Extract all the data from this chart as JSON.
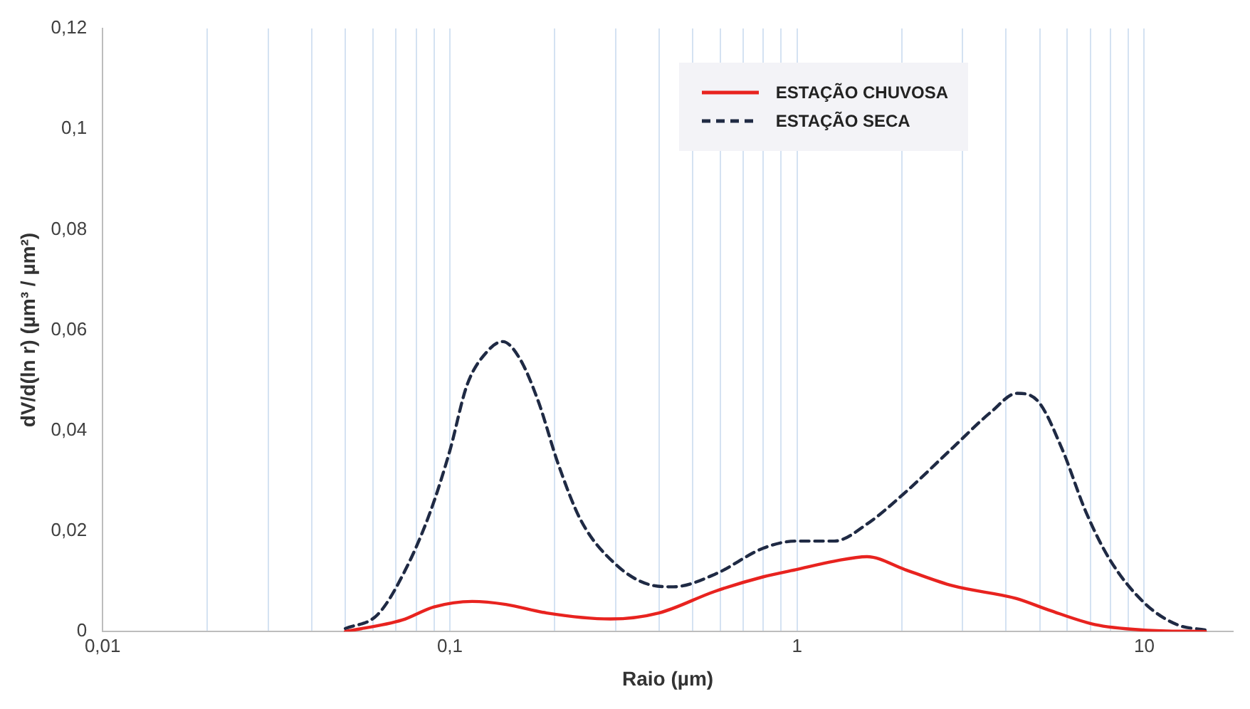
{
  "chart_data": {
    "type": "line",
    "xlabel": "Raio (µm)",
    "ylabel": "dV/d(ln r) (µm³ / µm²)",
    "log": "x",
    "grid": "x",
    "legend": "top right",
    "marker": "none",
    "xlim": [
      0.01,
      18
    ],
    "xticks": [
      {
        "value": 0.01,
        "label": "0,01"
      },
      {
        "value": 0.02,
        "label": null
      },
      {
        "value": 0.03,
        "label": null
      },
      {
        "value": 0.04,
        "label": null
      },
      {
        "value": 0.05,
        "label": null
      },
      {
        "value": 0.06,
        "label": null
      },
      {
        "value": 0.07,
        "label": null
      },
      {
        "value": 0.08,
        "label": null
      },
      {
        "value": 0.09,
        "label": null
      },
      {
        "value": 0.1,
        "label": "0,1"
      },
      {
        "value": 0.2,
        "label": null
      },
      {
        "value": 0.3,
        "label": null
      },
      {
        "value": 0.4,
        "label": null
      },
      {
        "value": 0.5,
        "label": null
      },
      {
        "value": 0.6,
        "label": null
      },
      {
        "value": 0.7,
        "label": null
      },
      {
        "value": 0.8,
        "label": null
      },
      {
        "value": 0.9,
        "label": null
      },
      {
        "value": 1,
        "label": "1"
      },
      {
        "value": 2,
        "label": null
      },
      {
        "value": 3,
        "label": null
      },
      {
        "value": 4,
        "label": null
      },
      {
        "value": 5,
        "label": null
      },
      {
        "value": 6,
        "label": null
      },
      {
        "value": 7,
        "label": null
      },
      {
        "value": 8,
        "label": null
      },
      {
        "value": 9,
        "label": null
      },
      {
        "value": 10,
        "label": "10"
      }
    ],
    "ylim": [
      0,
      0.12
    ],
    "yticks": [
      0,
      {
        "value": 0.02,
        "label": "0,02"
      },
      {
        "value": 0.04,
        "label": "0,04"
      },
      {
        "value": 0.06,
        "label": "0,06"
      },
      {
        "value": 0.08,
        "label": "0,08"
      },
      {
        "value": 0.1,
        "label": "0,1"
      },
      {
        "value": 0.12,
        "label": "0,12"
      }
    ],
    "series": [
      {
        "name": "ESTAÇÃO CHUVOSA",
        "color": "#e8231f",
        "line_style": "solid",
        "x": [
          0.05,
          0.073,
          0.09,
          0.116,
          0.145,
          0.19,
          0.29,
          0.4,
          0.58,
          0.8,
          0.99,
          1.28,
          1.59,
          2.05,
          2.81,
          4.27,
          5.3,
          7.2,
          10,
          15
        ],
        "values": [
          0,
          0.0023,
          0.0049,
          0.006,
          0.0054,
          0.0037,
          0.0025,
          0.0037,
          0.008,
          0.0109,
          0.0123,
          0.014,
          0.0149,
          0.0123,
          0.0091,
          0.0066,
          0.0043,
          0.0014,
          0.0003,
          0
        ]
      },
      {
        "name": "ESTAÇÃO SECA",
        "color": "#1f2a44",
        "line_style": "dashed",
        "x": [
          0.05,
          0.062,
          0.0745,
          0.0877,
          0.1,
          0.112,
          0.128,
          0.142,
          0.159,
          0.18,
          0.205,
          0.239,
          0.3,
          0.373,
          0.44,
          0.58,
          0.8,
          0.99,
          1.28,
          1.59,
          2.05,
          2.81,
          3.62,
          4.3,
          4.96,
          5.8,
          6.8,
          7.96,
          10,
          12.4,
          15
        ],
        "values": [
          0.0006,
          0.0034,
          0.0123,
          0.0237,
          0.036,
          0.049,
          0.0557,
          0.0577,
          0.0543,
          0.0457,
          0.0334,
          0.022,
          0.0134,
          0.0094,
          0.0089,
          0.0114,
          0.0166,
          0.018,
          0.018,
          0.0214,
          0.0277,
          0.0366,
          0.0437,
          0.0474,
          0.0457,
          0.0363,
          0.0237,
          0.0143,
          0.0057,
          0.0014,
          0.0003
        ]
      }
    ]
  }
}
